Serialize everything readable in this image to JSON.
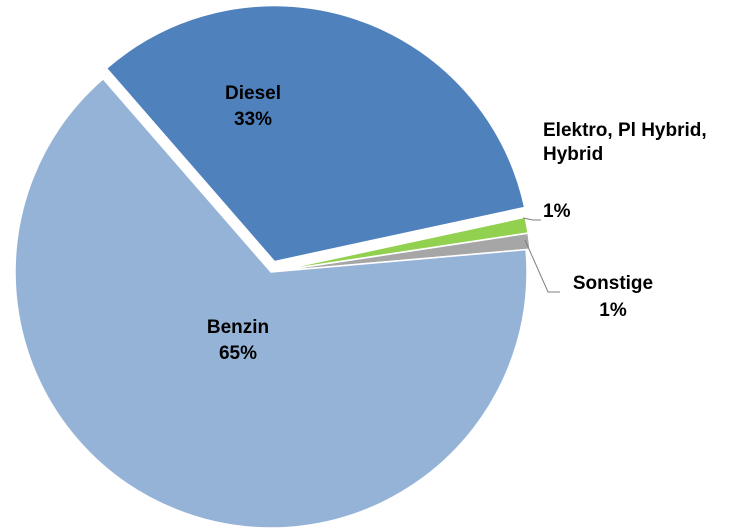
{
  "chart_data": {
    "type": "pie",
    "categories": [
      "Diesel",
      "Elektro, Pl Hybrid, Hybrid",
      "Sonstige",
      "Benzin"
    ],
    "values": [
      33,
      1,
      1,
      65
    ],
    "value_labels": [
      "33%",
      "1%",
      "1%",
      "65%"
    ],
    "colors": [
      "#4f81bd",
      "#92d050",
      "#a6a6a6",
      "#95b3d7"
    ]
  }
}
